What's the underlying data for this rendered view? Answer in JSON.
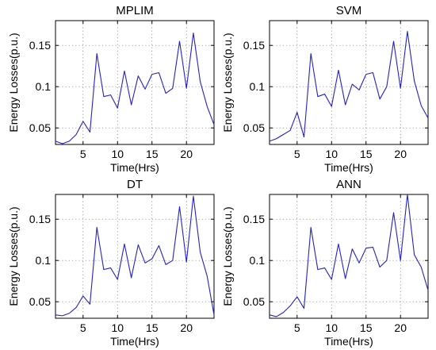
{
  "chart_data": [
    {
      "type": "line",
      "title": "MPLIM",
      "xlabel": "Time(Hrs)",
      "ylabel": "Energy Losses(p.u.)",
      "xlim": [
        1,
        24
      ],
      "ylim": [
        0.03,
        0.18
      ],
      "xticks": [
        5,
        10,
        15,
        20
      ],
      "yticks": [
        0.05,
        0.1,
        0.15
      ],
      "grid": true,
      "color": "#2222cc",
      "x": [
        1,
        2,
        3,
        4,
        5,
        6,
        7,
        8,
        9,
        10,
        11,
        12,
        13,
        14,
        15,
        16,
        17,
        18,
        19,
        20,
        21,
        22,
        23,
        24
      ],
      "values": [
        0.034,
        0.031,
        0.034,
        0.042,
        0.058,
        0.045,
        0.14,
        0.088,
        0.09,
        0.074,
        0.119,
        0.078,
        0.113,
        0.097,
        0.115,
        0.117,
        0.092,
        0.098,
        0.155,
        0.098,
        0.165,
        0.106,
        0.076,
        0.054
      ]
    },
    {
      "type": "line",
      "title": "SVM",
      "xlabel": "Time(Hrs)",
      "ylabel": "Energy Losses(p.u.)",
      "xlim": [
        1,
        24
      ],
      "ylim": [
        0.03,
        0.18
      ],
      "xticks": [
        5,
        10,
        15,
        20
      ],
      "yticks": [
        0.05,
        0.1,
        0.15
      ],
      "grid": true,
      "color": "#2222cc",
      "x": [
        1,
        2,
        3,
        4,
        5,
        6,
        7,
        8,
        9,
        10,
        11,
        12,
        13,
        14,
        15,
        16,
        17,
        18,
        19,
        20,
        21,
        22,
        23,
        24
      ],
      "values": [
        0.034,
        0.037,
        0.042,
        0.047,
        0.069,
        0.039,
        0.14,
        0.088,
        0.091,
        0.076,
        0.12,
        0.078,
        0.103,
        0.096,
        0.115,
        0.117,
        0.085,
        0.1,
        0.155,
        0.098,
        0.167,
        0.107,
        0.077,
        0.062
      ]
    },
    {
      "type": "line",
      "title": "DT",
      "xlabel": "Time(Hrs)",
      "ylabel": "Energy Losses(p.u.)",
      "xlim": [
        1,
        24
      ],
      "ylim": [
        0.03,
        0.18
      ],
      "xticks": [
        5,
        10,
        15,
        20
      ],
      "yticks": [
        0.05,
        0.1,
        0.15
      ],
      "grid": true,
      "color": "#2222cc",
      "x": [
        1,
        2,
        3,
        4,
        5,
        6,
        7,
        8,
        9,
        10,
        11,
        12,
        13,
        14,
        15,
        16,
        17,
        18,
        19,
        20,
        21,
        22,
        23,
        24
      ],
      "values": [
        0.034,
        0.033,
        0.036,
        0.043,
        0.057,
        0.047,
        0.14,
        0.089,
        0.091,
        0.077,
        0.12,
        0.079,
        0.119,
        0.097,
        0.102,
        0.118,
        0.095,
        0.1,
        0.165,
        0.098,
        0.178,
        0.11,
        0.081,
        0.034
      ]
    },
    {
      "type": "line",
      "title": "ANN",
      "xlabel": "Time(Hrs)",
      "ylabel": "Energy Losses(p.u.)",
      "xlim": [
        1,
        24
      ],
      "ylim": [
        0.03,
        0.18
      ],
      "xticks": [
        5,
        10,
        15,
        20
      ],
      "yticks": [
        0.05,
        0.1,
        0.15
      ],
      "grid": true,
      "color": "#2222cc",
      "x": [
        1,
        2,
        3,
        4,
        5,
        6,
        7,
        8,
        9,
        10,
        11,
        12,
        13,
        14,
        15,
        16,
        17,
        18,
        19,
        20,
        21,
        22,
        23,
        24
      ],
      "values": [
        0.034,
        0.032,
        0.037,
        0.045,
        0.056,
        0.042,
        0.14,
        0.089,
        0.091,
        0.077,
        0.12,
        0.078,
        0.114,
        0.097,
        0.115,
        0.116,
        0.092,
        0.1,
        0.158,
        0.1,
        0.18,
        0.107,
        0.092,
        0.064
      ]
    }
  ]
}
